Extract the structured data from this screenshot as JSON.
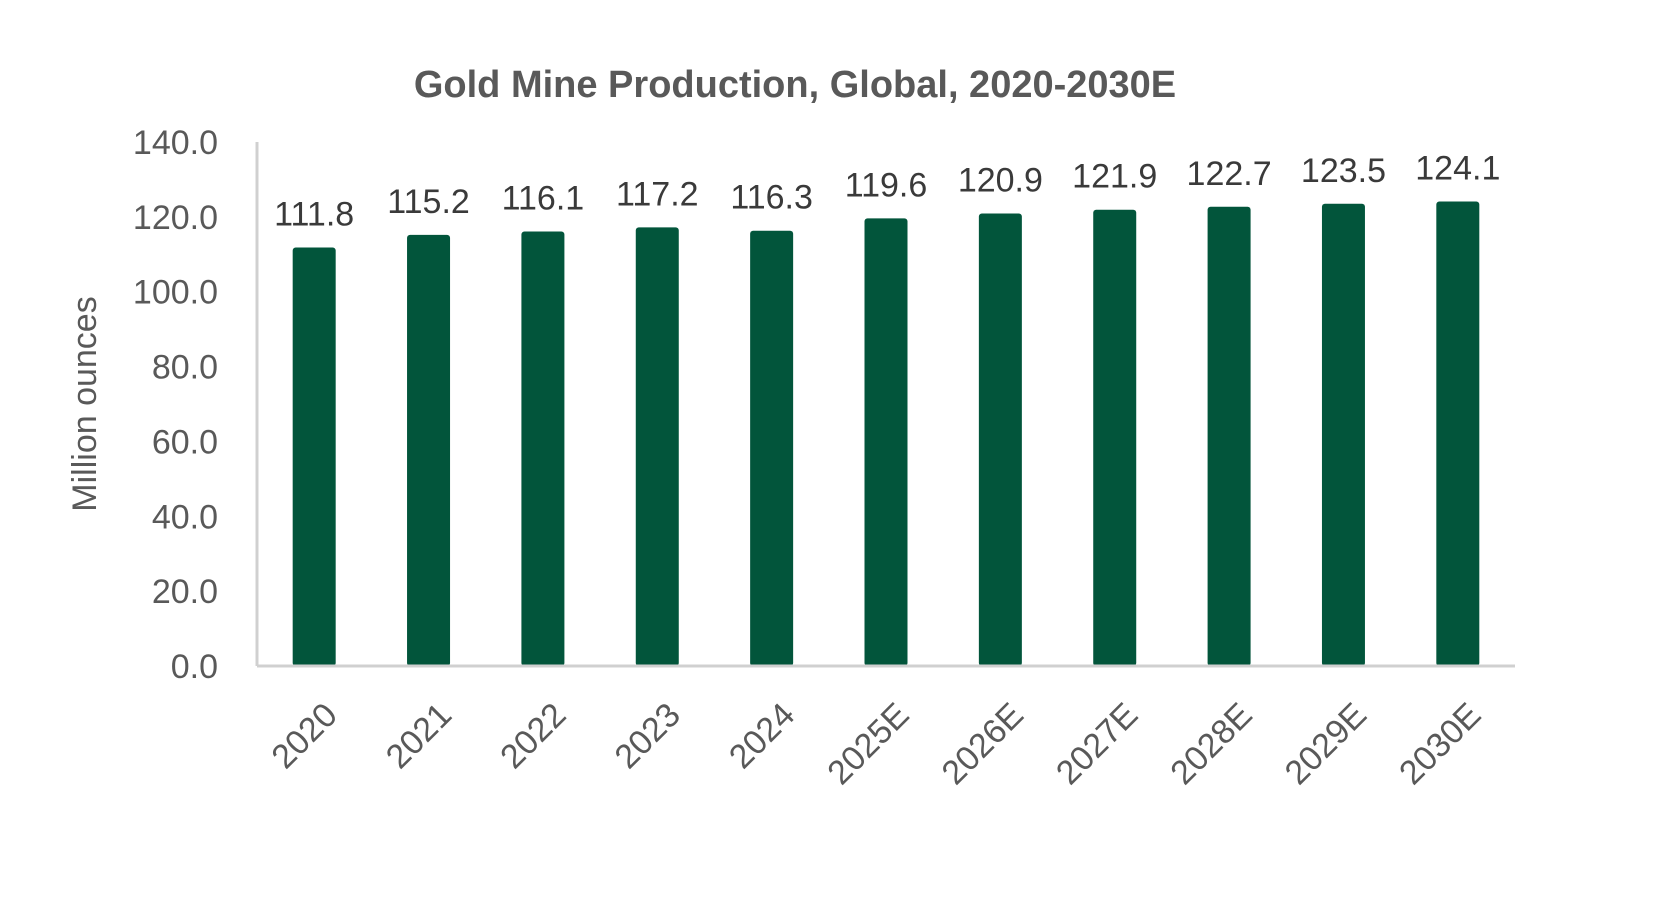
{
  "chart_data": {
    "type": "bar",
    "title": "Gold Mine Production, Global, 2020-2030E",
    "xlabel": "",
    "ylabel": "Million ounces",
    "categories": [
      "2020",
      "2021",
      "2022",
      "2023",
      "2024",
      "2025E",
      "2026E",
      "2027E",
      "2028E",
      "2029E",
      "2030E"
    ],
    "values": [
      111.8,
      115.2,
      116.1,
      117.2,
      116.3,
      119.6,
      120.9,
      121.9,
      122.7,
      123.5,
      124.1
    ],
    "ylim": [
      0,
      140
    ],
    "yticks": [
      "0.0",
      "20.0",
      "40.0",
      "60.0",
      "80.0",
      "100.0",
      "120.0",
      "140.0"
    ],
    "grid": false,
    "legend": "none",
    "colors": {
      "bar": "#02553b",
      "axis": "#d0d0d0",
      "text": "#595959"
    }
  }
}
